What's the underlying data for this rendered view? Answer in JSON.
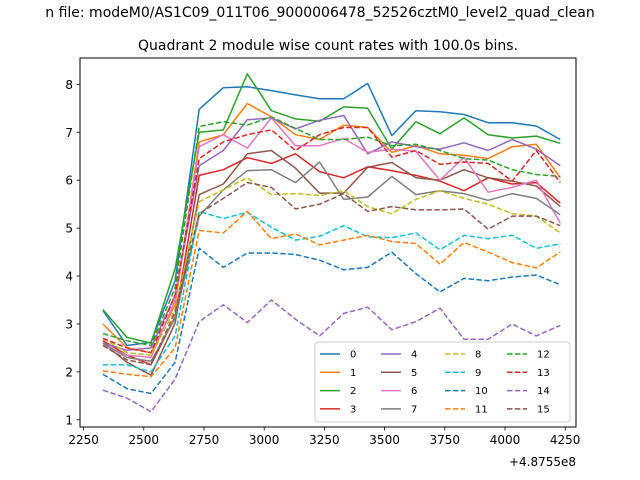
{
  "chart_data": {
    "type": "line",
    "suptitle": "n file: modeM0/AS1C09_011T06_9000006478_52526cztM0_level2_quad_clean",
    "title": "Quadrant 2 module wise count rates with 100.0s bins.",
    "xlabel": "",
    "ylabel": "",
    "x_offset_label": "+4.8755e8",
    "xlim": [
      2235,
      4295
    ],
    "ylim": [
      0.85,
      8.55
    ],
    "xticks": [
      2250,
      2500,
      2750,
      3000,
      3250,
      3500,
      3750,
      4000,
      4250
    ],
    "yticks": [
      1,
      2,
      3,
      4,
      5,
      6,
      7,
      8
    ],
    "x": [
      2330,
      2430,
      2530,
      2630,
      2730,
      2830,
      2930,
      3030,
      3130,
      3230,
      3330,
      3430,
      3530,
      3630,
      3730,
      3830,
      3930,
      4030,
      4130,
      4230
    ],
    "legend_position": "lower right",
    "series": [
      {
        "name": "0",
        "color": "#1f77b4",
        "dash": "solid",
        "values": [
          3.28,
          2.55,
          2.62,
          3.9,
          7.48,
          7.93,
          7.95,
          7.87,
          7.78,
          7.7,
          7.7,
          8.02,
          6.93,
          7.45,
          7.43,
          7.37,
          7.2,
          7.2,
          7.13,
          6.85
        ]
      },
      {
        "name": "1",
        "color": "#ff7f0e",
        "dash": "solid",
        "values": [
          3.0,
          2.5,
          2.4,
          3.4,
          6.8,
          6.95,
          7.6,
          7.32,
          6.95,
          6.85,
          7.15,
          7.1,
          6.58,
          6.72,
          6.55,
          6.52,
          6.45,
          6.7,
          6.75,
          6.05
        ]
      },
      {
        "name": "2",
        "color": "#2ca02c",
        "dash": "solid",
        "values": [
          3.3,
          2.72,
          2.6,
          4.15,
          7.0,
          7.05,
          8.22,
          7.45,
          7.28,
          7.23,
          7.53,
          7.5,
          6.65,
          7.22,
          6.97,
          7.3,
          6.95,
          6.88,
          6.92,
          6.77
        ]
      },
      {
        "name": "3",
        "color": "#d62728",
        "dash": "solid",
        "values": [
          2.65,
          2.35,
          2.15,
          3.15,
          6.1,
          6.22,
          6.47,
          6.35,
          6.55,
          6.18,
          6.05,
          6.28,
          6.2,
          6.1,
          5.98,
          5.78,
          6.05,
          5.92,
          5.95,
          5.52
        ]
      },
      {
        "name": "4",
        "color": "#9467bd",
        "dash": "solid",
        "values": [
          2.6,
          2.45,
          2.5,
          3.6,
          6.3,
          6.62,
          7.26,
          7.3,
          7.07,
          7.25,
          7.35,
          6.55,
          6.8,
          6.7,
          6.65,
          6.78,
          6.62,
          6.85,
          6.65,
          6.3
        ]
      },
      {
        "name": "5",
        "color": "#8c564b",
        "dash": "solid",
        "values": [
          2.6,
          2.2,
          1.93,
          3.02,
          5.7,
          5.92,
          6.55,
          6.62,
          6.25,
          5.73,
          5.73,
          6.27,
          6.37,
          6.05,
          6.0,
          6.22,
          6.05,
          5.98,
          5.88,
          5.45
        ]
      },
      {
        "name": "6",
        "color": "#e377c2",
        "dash": "solid",
        "values": [
          2.55,
          2.35,
          2.3,
          3.5,
          6.7,
          6.95,
          6.67,
          7.3,
          6.72,
          6.72,
          6.87,
          6.58,
          6.65,
          6.6,
          6.0,
          6.48,
          5.75,
          5.85,
          6.0,
          5.1
        ]
      },
      {
        "name": "7",
        "color": "#7f7f7f",
        "dash": "solid",
        "values": [
          2.6,
          2.3,
          2.22,
          3.12,
          5.25,
          5.8,
          6.2,
          6.22,
          5.95,
          6.38,
          5.6,
          5.65,
          6.08,
          5.7,
          5.78,
          5.72,
          5.58,
          5.72,
          5.62,
          5.28
        ]
      },
      {
        "name": "8",
        "color": "#bcbd22",
        "dash": "dashed",
        "values": [
          2.7,
          2.4,
          2.35,
          3.3,
          5.55,
          5.8,
          6.05,
          5.7,
          5.72,
          5.68,
          5.78,
          5.45,
          5.3,
          5.6,
          5.78,
          5.62,
          5.5,
          5.3,
          5.25,
          4.9
        ]
      },
      {
        "name": "9",
        "color": "#17becf",
        "dash": "dashed",
        "values": [
          2.15,
          2.15,
          2.0,
          2.75,
          5.35,
          5.2,
          5.33,
          5.02,
          4.75,
          4.83,
          5.05,
          4.82,
          4.8,
          4.9,
          4.55,
          4.85,
          4.78,
          4.85,
          4.58,
          4.67
        ]
      },
      {
        "name": "10",
        "color": "#1f77b4",
        "dash": "dashed",
        "values": [
          1.95,
          1.65,
          1.55,
          2.2,
          4.58,
          4.18,
          4.48,
          4.48,
          4.45,
          4.33,
          4.13,
          4.18,
          4.5,
          4.05,
          3.67,
          3.95,
          3.9,
          3.98,
          4.02,
          3.82
        ]
      },
      {
        "name": "11",
        "color": "#ff7f0e",
        "dash": "dashed",
        "values": [
          2.02,
          1.95,
          1.9,
          2.5,
          4.95,
          4.9,
          5.35,
          4.78,
          4.88,
          4.65,
          4.75,
          4.85,
          4.72,
          4.68,
          4.25,
          4.7,
          4.5,
          4.28,
          4.17,
          4.5
        ]
      },
      {
        "name": "12",
        "color": "#2ca02c",
        "dash": "dashed",
        "values": [
          2.8,
          2.65,
          2.55,
          3.75,
          7.12,
          7.22,
          7.15,
          7.32,
          7.08,
          6.85,
          6.85,
          6.9,
          6.72,
          6.75,
          6.62,
          6.45,
          6.42,
          6.22,
          6.12,
          6.08
        ]
      },
      {
        "name": "13",
        "color": "#d62728",
        "dash": "dashed",
        "values": [
          2.7,
          2.5,
          2.4,
          3.6,
          6.45,
          6.8,
          6.95,
          7.05,
          6.62,
          6.95,
          7.1,
          7.1,
          6.48,
          6.62,
          6.33,
          6.38,
          6.35,
          5.98,
          6.62,
          5.95
        ]
      },
      {
        "name": "14",
        "color": "#9467bd",
        "dash": "dashed",
        "values": [
          1.62,
          1.45,
          1.17,
          1.85,
          3.05,
          3.4,
          3.03,
          3.5,
          3.1,
          2.75,
          3.22,
          3.35,
          2.88,
          3.05,
          3.33,
          2.68,
          2.68,
          3.0,
          2.75,
          2.97
        ]
      },
      {
        "name": "15",
        "color": "#8c564b",
        "dash": "dashed",
        "values": [
          2.55,
          2.25,
          2.15,
          3.25,
          5.3,
          5.62,
          5.95,
          5.85,
          5.4,
          5.5,
          5.72,
          5.35,
          5.45,
          5.38,
          5.38,
          5.4,
          4.98,
          5.25,
          5.25,
          5.05
        ]
      }
    ]
  }
}
